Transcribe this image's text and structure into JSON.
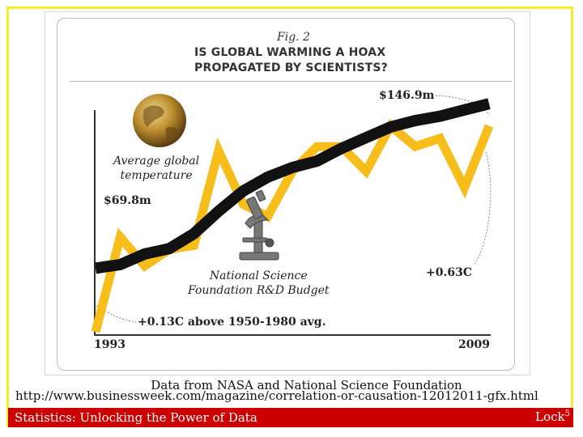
{
  "slide": {
    "source_line": "Data from NASA and National Science Foundation",
    "url": "http://www.businessweek.com/magazine/correlation-or-causation-12012011-gfx.html",
    "footer_left": "Statistics: Unlocking the Power of Data",
    "footer_right": "Lock",
    "footer_sup": "5"
  },
  "chart_data": {
    "type": "line",
    "figure_label": "Fig. 2",
    "title_lines": [
      "IS GLOBAL WARMING A HOAX",
      "PROPAGATED BY SCIENTISTS?"
    ],
    "x_start_label": "1993",
    "x_end_label": "2009",
    "x": [
      1993,
      1994,
      1995,
      1996,
      1997,
      1998,
      1999,
      2000,
      2001,
      2002,
      2003,
      2004,
      2005,
      2006,
      2007,
      2008,
      2009
    ],
    "xlim": [
      1993,
      2009
    ],
    "series": [
      {
        "name": "Average global temperature",
        "label_lines": [
          "Average global",
          "temperature"
        ],
        "color": "#f7bd1b",
        "unit": "C",
        "start_label": "+0.13C above 1950-1980 avg.",
        "end_label": "+0.63C",
        "values": [
          0.13,
          0.36,
          0.29,
          0.33,
          0.34,
          0.57,
          0.44,
          0.41,
          0.52,
          0.58,
          0.58,
          0.52,
          0.63,
          0.58,
          0.6,
          0.48,
          0.63
        ],
        "ylim": [
          0.13,
          0.7
        ]
      },
      {
        "name": "National Science Foundation R&D Budget",
        "label_lines": [
          "National Science",
          "Foundation R&D Budget"
        ],
        "color": "#111111",
        "unit": "$m",
        "start_label": "$69.8m",
        "end_label": "$146.9m",
        "values": [
          69.8,
          71.5,
          76.5,
          79.0,
          86.0,
          96.5,
          106.0,
          112.5,
          117.0,
          120.0,
          126.0,
          131.0,
          136.0,
          139.0,
          141.0,
          144.0,
          146.9
        ],
        "ylim": [
          40,
          150
        ]
      }
    ],
    "icons": [
      "globe-icon",
      "microscope-icon"
    ],
    "grid": false,
    "legend": "none"
  }
}
